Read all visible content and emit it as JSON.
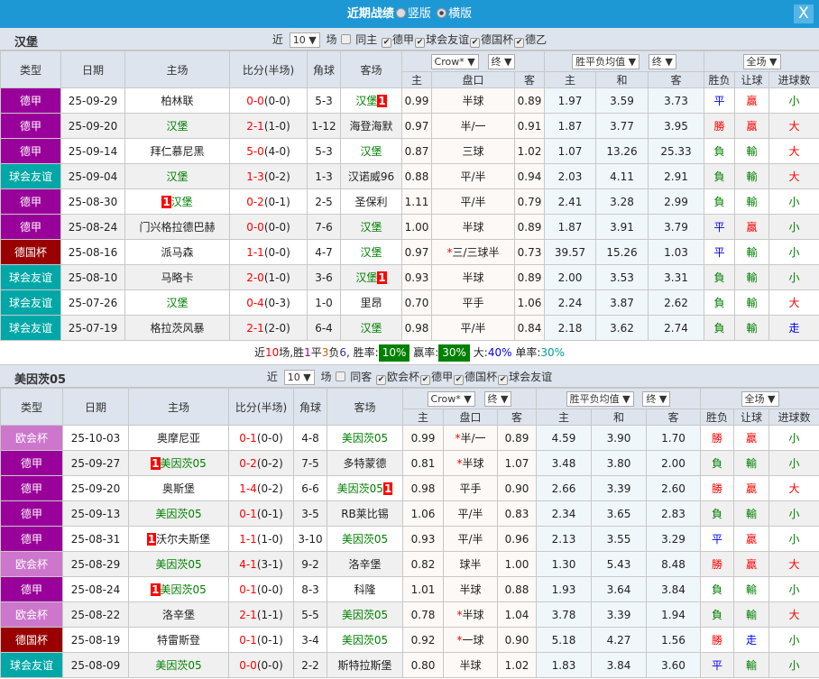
{
  "titlebar": {
    "title": "近期战绩",
    "option_portrait": "竖版",
    "option_landscape": "横版",
    "selected": "横版",
    "close": "X"
  },
  "headers": {
    "type": "类型",
    "date": "日期",
    "home": "主场",
    "score": "比分(半场)",
    "corner": "角球",
    "away": "客场",
    "company": "Crow*",
    "state1": "终",
    "avg": "胜平负均值",
    "state2": "终",
    "period": "全场",
    "sub": [
      "主",
      "盘口",
      "客",
      "主",
      "和",
      "客",
      "胜负",
      "让球",
      "进球数"
    ]
  },
  "colors": {
    "德甲": "#990099",
    "球会友谊": "#00a7a7",
    "德国杯": "#990000",
    "欧会杯": "#cc77cc",
    "highlight": "#008000",
    "accent": "#1e98d5"
  },
  "sections": [
    {
      "team": "汉堡",
      "filter": {
        "near": "近",
        "count": "10",
        "unit": "场",
        "same": "同主",
        "same_checked": false,
        "leagues": [
          {
            "name": "德甲",
            "checked": true
          },
          {
            "name": "球会友谊",
            "checked": true
          },
          {
            "name": "德国杯",
            "checked": true
          },
          {
            "name": "德乙",
            "checked": true
          }
        ]
      },
      "rows": [
        {
          "type": "德甲",
          "date": "25-09-29",
          "home": "柏林联",
          "home_hl": false,
          "home_card": "",
          "score": "0-0",
          "half": "(0-0)",
          "corner": "5-3",
          "away": "汉堡",
          "away_hl": true,
          "away_card": "1",
          "o1": "0.99",
          "hc": "半球",
          "star": false,
          "o2": "0.89",
          "w": "1.97",
          "d": "3.59",
          "l": "3.73",
          "res": "平",
          "hcr": "贏",
          "ou": "小"
        },
        {
          "type": "德甲",
          "date": "25-09-20",
          "home": "汉堡",
          "home_hl": true,
          "home_card": "",
          "score": "2-1",
          "half": "(1-0)",
          "corner": "1-12",
          "away": "海登海默",
          "away_hl": false,
          "away_card": "",
          "o1": "0.97",
          "hc": "半/一",
          "star": false,
          "o2": "0.91",
          "w": "1.87",
          "d": "3.77",
          "l": "3.95",
          "res": "勝",
          "hcr": "贏",
          "ou": "大"
        },
        {
          "type": "德甲",
          "date": "25-09-14",
          "home": "拜仁慕尼黑",
          "home_hl": false,
          "home_card": "",
          "score": "5-0",
          "half": "(4-0)",
          "corner": "5-3",
          "away": "汉堡",
          "away_hl": true,
          "away_card": "",
          "o1": "0.87",
          "hc": "三球",
          "star": false,
          "o2": "1.02",
          "w": "1.07",
          "d": "13.26",
          "l": "25.33",
          "res": "負",
          "hcr": "輸",
          "ou": "大"
        },
        {
          "type": "球会友谊",
          "date": "25-09-04",
          "home": "汉堡",
          "home_hl": true,
          "home_card": "",
          "score": "1-3",
          "half": "(0-2)",
          "corner": "1-3",
          "away": "汉诺威96",
          "away_hl": false,
          "away_card": "",
          "o1": "0.88",
          "hc": "平/半",
          "star": false,
          "o2": "0.94",
          "w": "2.03",
          "d": "4.11",
          "l": "2.91",
          "res": "負",
          "hcr": "輸",
          "ou": "大"
        },
        {
          "type": "德甲",
          "date": "25-08-30",
          "home": "汉堡",
          "home_hl": true,
          "home_card": "1",
          "home_card_pos": "before",
          "score": "0-2",
          "half": "(0-1)",
          "corner": "2-5",
          "away": "圣保利",
          "away_hl": false,
          "away_card": "",
          "o1": "1.11",
          "hc": "平/半",
          "star": false,
          "o2": "0.79",
          "w": "2.41",
          "d": "3.28",
          "l": "2.99",
          "res": "負",
          "hcr": "輸",
          "ou": "小"
        },
        {
          "type": "德甲",
          "date": "25-08-24",
          "home": "门兴格拉德巴赫",
          "home_hl": false,
          "home_card": "",
          "score": "0-0",
          "half": "(0-0)",
          "corner": "7-6",
          "away": "汉堡",
          "away_hl": true,
          "away_card": "",
          "o1": "1.00",
          "hc": "半球",
          "star": false,
          "o2": "0.89",
          "w": "1.87",
          "d": "3.91",
          "l": "3.79",
          "res": "平",
          "hcr": "贏",
          "ou": "小"
        },
        {
          "type": "德国杯",
          "date": "25-08-16",
          "home": "派马森",
          "home_hl": false,
          "home_card": "",
          "score": "1-1",
          "half": "(0-0)",
          "corner": "4-7",
          "away": "汉堡",
          "away_hl": true,
          "away_card": "",
          "o1": "0.97",
          "hc": "三/三球半",
          "star": true,
          "o2": "0.73",
          "w": "39.57",
          "d": "15.26",
          "l": "1.03",
          "res": "平",
          "hcr": "輸",
          "ou": "小"
        },
        {
          "type": "球会友谊",
          "date": "25-08-10",
          "home": "马略卡",
          "home_hl": false,
          "home_card": "",
          "score": "2-0",
          "half": "(1-0)",
          "corner": "3-6",
          "away": "汉堡",
          "away_hl": true,
          "away_card": "1",
          "o1": "0.93",
          "hc": "半球",
          "star": false,
          "o2": "0.89",
          "w": "2.00",
          "d": "3.53",
          "l": "3.31",
          "res": "負",
          "hcr": "輸",
          "ou": "小"
        },
        {
          "type": "球会友谊",
          "date": "25-07-26",
          "home": "汉堡",
          "home_hl": true,
          "home_card": "",
          "score": "0-4",
          "half": "(0-3)",
          "corner": "1-0",
          "away": "里昂",
          "away_hl": false,
          "away_card": "",
          "o1": "0.70",
          "hc": "平手",
          "star": false,
          "o2": "1.06",
          "w": "2.24",
          "d": "3.87",
          "l": "2.62",
          "res": "負",
          "hcr": "輸",
          "ou": "大"
        },
        {
          "type": "球会友谊",
          "date": "25-07-19",
          "home": "格拉茨风暴",
          "home_hl": false,
          "home_card": "",
          "score": "2-1",
          "half": "(2-0)",
          "corner": "6-4",
          "away": "汉堡",
          "away_hl": true,
          "away_card": "",
          "o1": "0.98",
          "hc": "平/半",
          "star": false,
          "o2": "0.84",
          "w": "2.18",
          "d": "3.62",
          "l": "2.74",
          "res": "負",
          "hcr": "輸",
          "ou": "走"
        }
      ],
      "summary": {
        "p1": "近",
        "n": "10",
        "p2": "场,胜",
        "win": "1",
        "p3": "平",
        "draw": "3",
        "p4": "负",
        "loss": "6",
        "p5": ", 胜率:",
        "win_rate": "10%",
        "p6": "赢率:",
        "hc_rate": "30%",
        "p7": "大:",
        "big_rate": "40%",
        "p8": "单率:",
        "odd_rate": "30%"
      }
    },
    {
      "team": "美因茨05",
      "filter": {
        "near": "近",
        "count": "10",
        "unit": "场",
        "same": "同客",
        "same_checked": false,
        "leagues": [
          {
            "name": "欧会杯",
            "checked": true
          },
          {
            "name": "德甲",
            "checked": true
          },
          {
            "name": "德国杯",
            "checked": true
          },
          {
            "name": "球会友谊",
            "checked": true
          }
        ]
      },
      "rows": [
        {
          "type": "欧会杯",
          "date": "25-10-03",
          "home": "奥摩尼亚",
          "home_hl": false,
          "home_card": "",
          "score": "0-1",
          "half": "(0-0)",
          "corner": "4-8",
          "away": "美因茨05",
          "away_hl": true,
          "away_card": "",
          "o1": "0.99",
          "hc": "半/一",
          "star": true,
          "o2": "0.89",
          "w": "4.59",
          "d": "3.90",
          "l": "1.70",
          "res": "勝",
          "hcr": "贏",
          "ou": "小"
        },
        {
          "type": "德甲",
          "date": "25-09-27",
          "home": "美因茨05",
          "home_hl": true,
          "home_card": "1",
          "score": "0-2",
          "half": "(0-2)",
          "corner": "7-5",
          "away": "多特蒙德",
          "away_hl": false,
          "away_card": "",
          "o1": "0.81",
          "hc": "半球",
          "star": true,
          "o2": "1.07",
          "w": "3.48",
          "d": "3.80",
          "l": "2.00",
          "res": "負",
          "hcr": "輸",
          "ou": "小"
        },
        {
          "type": "德甲",
          "date": "25-09-20",
          "home": "奥斯堡",
          "home_hl": false,
          "home_card": "",
          "score": "1-4",
          "half": "(0-2)",
          "corner": "6-6",
          "away": "美因茨05",
          "away_hl": true,
          "away_card": "1",
          "o1": "0.98",
          "hc": "平手",
          "star": false,
          "o2": "0.90",
          "w": "2.66",
          "d": "3.39",
          "l": "2.60",
          "res": "勝",
          "hcr": "贏",
          "ou": "大"
        },
        {
          "type": "德甲",
          "date": "25-09-13",
          "home": "美因茨05",
          "home_hl": true,
          "home_card": "",
          "score": "0-1",
          "half": "(0-1)",
          "corner": "3-5",
          "away": "RB莱比锡",
          "away_hl": false,
          "away_card": "",
          "o1": "1.06",
          "hc": "平/半",
          "star": false,
          "o2": "0.83",
          "w": "2.34",
          "d": "3.65",
          "l": "2.83",
          "res": "負",
          "hcr": "輸",
          "ou": "小"
        },
        {
          "type": "德甲",
          "date": "25-08-31",
          "home": "沃尔夫斯堡",
          "home_hl": false,
          "home_card": "1",
          "score": "1-1",
          "half": "(1-0)",
          "corner": "3-10",
          "away": "美因茨05",
          "away_hl": true,
          "away_card": "",
          "o1": "0.93",
          "hc": "平/半",
          "star": false,
          "o2": "0.96",
          "w": "2.13",
          "d": "3.55",
          "l": "3.29",
          "res": "平",
          "hcr": "贏",
          "ou": "小"
        },
        {
          "type": "欧会杯",
          "date": "25-08-29",
          "home": "美因茨05",
          "home_hl": true,
          "home_card": "",
          "score": "4-1",
          "half": "(3-1)",
          "corner": "9-2",
          "away": "洛辛堡",
          "away_hl": false,
          "away_card": "",
          "o1": "0.82",
          "hc": "球半",
          "star": false,
          "o2": "1.00",
          "w": "1.30",
          "d": "5.43",
          "l": "8.48",
          "res": "勝",
          "hcr": "贏",
          "ou": "大"
        },
        {
          "type": "德甲",
          "date": "25-08-24",
          "home": "美因茨05",
          "home_hl": true,
          "home_card": "1",
          "score": "0-1",
          "half": "(0-0)",
          "corner": "8-3",
          "away": "科隆",
          "away_hl": false,
          "away_card": "",
          "o1": "1.01",
          "hc": "半球",
          "star": false,
          "o2": "0.88",
          "w": "1.93",
          "d": "3.64",
          "l": "3.84",
          "res": "負",
          "hcr": "輸",
          "ou": "小"
        },
        {
          "type": "欧会杯",
          "date": "25-08-22",
          "home": "洛辛堡",
          "home_hl": false,
          "home_card": "",
          "score": "2-1",
          "half": "(1-1)",
          "corner": "5-5",
          "away": "美因茨05",
          "away_hl": true,
          "away_card": "",
          "o1": "0.78",
          "hc": "半球",
          "star": true,
          "o2": "1.04",
          "w": "3.78",
          "d": "3.39",
          "l": "1.94",
          "res": "負",
          "hcr": "輸",
          "ou": "大"
        },
        {
          "type": "德国杯",
          "date": "25-08-19",
          "home": "特雷斯登",
          "home_hl": false,
          "home_card": "",
          "score": "0-1",
          "half": "(0-1)",
          "corner": "3-4",
          "away": "美因茨05",
          "away_hl": true,
          "away_card": "",
          "o1": "0.92",
          "hc": "一球",
          "star": true,
          "o2": "0.90",
          "w": "5.18",
          "d": "4.27",
          "l": "1.56",
          "res": "勝",
          "hcr": "走",
          "ou": "小"
        },
        {
          "type": "球会友谊",
          "date": "25-08-09",
          "home": "美因茨05",
          "home_hl": true,
          "home_card": "",
          "score": "0-0",
          "half": "(0-0)",
          "corner": "2-2",
          "away": "斯特拉斯堡",
          "away_hl": false,
          "away_card": "",
          "o1": "0.80",
          "hc": "半球",
          "star": false,
          "o2": "1.02",
          "w": "1.83",
          "d": "3.84",
          "l": "3.60",
          "res": "平",
          "hcr": "輸",
          "ou": "小"
        }
      ]
    }
  ]
}
